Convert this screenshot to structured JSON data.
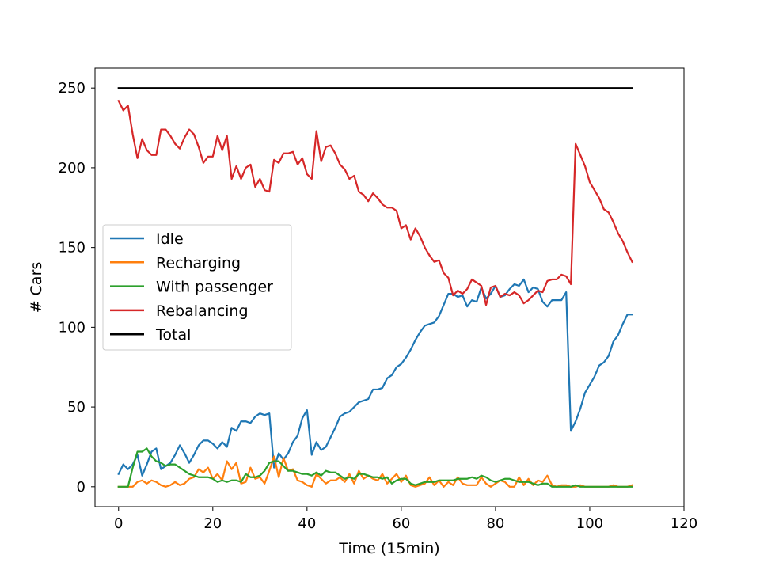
{
  "chart_data": {
    "type": "line",
    "xlabel": "Time (15min)",
    "ylabel": "# Cars",
    "xlim": [
      -5,
      120
    ],
    "ylim": [
      -12.5,
      262.5
    ],
    "xticks": [
      0,
      20,
      40,
      60,
      80,
      100,
      120
    ],
    "yticks": [
      0,
      50,
      100,
      150,
      200,
      250
    ],
    "grid": false,
    "legend_position": "center-left",
    "series": [
      {
        "name": "Idle",
        "color": "#1f77b4",
        "x": [
          0,
          1,
          2,
          3,
          4,
          5,
          6,
          7,
          8,
          9,
          10,
          11,
          12,
          13,
          14,
          15,
          16,
          17,
          18,
          19,
          20,
          21,
          22,
          23,
          24,
          25,
          26,
          27,
          28,
          29,
          30,
          31,
          32,
          33,
          34,
          35,
          36,
          37,
          38,
          39,
          40,
          41,
          42,
          43,
          44,
          45,
          46,
          47,
          48,
          49,
          50,
          51,
          52,
          53,
          54,
          55,
          56,
          57,
          58,
          59,
          60,
          61,
          62,
          63,
          64,
          65,
          66,
          67,
          68,
          69,
          70,
          71,
          72,
          73,
          74,
          75,
          76,
          77,
          78,
          79,
          80,
          81,
          82,
          83,
          84,
          85,
          86,
          87,
          88,
          89,
          90,
          91,
          92,
          93,
          94,
          95,
          96,
          97,
          98,
          99,
          100,
          101,
          102,
          103,
          104,
          105,
          106,
          107,
          108,
          109
        ],
        "y": [
          8,
          14,
          11,
          14,
          20,
          7,
          14,
          22,
          24,
          11,
          13,
          15,
          20,
          26,
          21,
          15,
          20,
          26,
          29,
          29,
          27,
          24,
          28,
          25,
          37,
          35,
          41,
          41,
          40,
          44,
          46,
          45,
          46,
          12,
          21,
          17,
          21,
          28,
          32,
          43,
          48,
          20,
          28,
          23,
          25,
          31,
          37,
          44,
          46,
          47,
          50,
          53,
          54,
          55,
          61,
          61,
          62,
          68,
          70,
          75,
          77,
          81,
          86,
          92,
          97,
          101,
          102,
          103,
          107,
          114,
          121,
          121,
          119,
          120,
          113,
          117,
          116,
          125,
          118,
          121,
          126,
          119,
          120,
          124,
          127,
          126,
          130,
          122,
          125,
          124,
          116,
          113,
          117,
          117,
          117,
          122,
          35,
          41,
          49,
          59,
          64,
          69,
          76,
          78,
          82,
          91,
          95,
          102,
          108,
          108
        ]
      },
      {
        "name": "Recharging",
        "color": "#ff7f0e",
        "x": [
          0,
          1,
          2,
          3,
          4,
          5,
          6,
          7,
          8,
          9,
          10,
          11,
          12,
          13,
          14,
          15,
          16,
          17,
          18,
          19,
          20,
          21,
          22,
          23,
          24,
          25,
          26,
          27,
          28,
          29,
          30,
          31,
          32,
          33,
          34,
          35,
          36,
          37,
          38,
          39,
          40,
          41,
          42,
          43,
          44,
          45,
          46,
          47,
          48,
          49,
          50,
          51,
          52,
          53,
          54,
          55,
          56,
          57,
          58,
          59,
          60,
          61,
          62,
          63,
          64,
          65,
          66,
          67,
          68,
          69,
          70,
          71,
          72,
          73,
          74,
          75,
          76,
          77,
          78,
          79,
          80,
          81,
          82,
          83,
          84,
          85,
          86,
          87,
          88,
          89,
          90,
          91,
          92,
          93,
          94,
          95,
          96,
          97,
          98,
          99,
          100,
          101,
          102,
          103,
          104,
          105,
          106,
          107,
          108,
          109
        ],
        "y": [
          0,
          0,
          0,
          0,
          3,
          4,
          2,
          4,
          3,
          1,
          0,
          1,
          3,
          1,
          2,
          5,
          6,
          11,
          9,
          12,
          5,
          8,
          4,
          16,
          11,
          15,
          2,
          3,
          12,
          5,
          6,
          2,
          10,
          19,
          6,
          18,
          10,
          11,
          4,
          3,
          1,
          0,
          8,
          5,
          2,
          4,
          4,
          6,
          3,
          8,
          2,
          10,
          5,
          7,
          5,
          4,
          8,
          2,
          5,
          8,
          3,
          7,
          1,
          0,
          1,
          2,
          6,
          1,
          4,
          0,
          3,
          1,
          6,
          2,
          1,
          1,
          1,
          6,
          2,
          0,
          2,
          4,
          3,
          0,
          0,
          6,
          1,
          5,
          1,
          4,
          3,
          7,
          1,
          0,
          1,
          1,
          0,
          0,
          1,
          0,
          0,
          0,
          0,
          0,
          0,
          1,
          0,
          0,
          0,
          1
        ]
      },
      {
        "name": "With passenger",
        "color": "#2ca02c",
        "x": [
          0,
          1,
          2,
          3,
          4,
          5,
          6,
          7,
          8,
          9,
          10,
          11,
          12,
          13,
          14,
          15,
          16,
          17,
          18,
          19,
          20,
          21,
          22,
          23,
          24,
          25,
          26,
          27,
          28,
          29,
          30,
          31,
          32,
          33,
          34,
          35,
          36,
          37,
          38,
          39,
          40,
          41,
          42,
          43,
          44,
          45,
          46,
          47,
          48,
          49,
          50,
          51,
          52,
          53,
          54,
          55,
          56,
          57,
          58,
          59,
          60,
          61,
          62,
          63,
          64,
          65,
          66,
          67,
          68,
          69,
          70,
          71,
          72,
          73,
          74,
          75,
          76,
          77,
          78,
          79,
          80,
          81,
          82,
          83,
          84,
          85,
          86,
          87,
          88,
          89,
          90,
          91,
          92,
          93,
          94,
          95,
          96,
          97,
          98,
          99,
          100,
          101,
          102,
          103,
          104,
          105,
          106,
          107,
          108,
          109
        ],
        "y": [
          0,
          0,
          0,
          12,
          22,
          22,
          24,
          19,
          16,
          15,
          13,
          14,
          14,
          12,
          10,
          8,
          7,
          6,
          6,
          6,
          5,
          3,
          4,
          3,
          4,
          4,
          3,
          8,
          6,
          6,
          7,
          10,
          15,
          16,
          16,
          13,
          10,
          10,
          9,
          8,
          8,
          7,
          9,
          7,
          10,
          9,
          9,
          7,
          5,
          6,
          5,
          8,
          8,
          7,
          6,
          6,
          5,
          6,
          2,
          4,
          5,
          5,
          2,
          1,
          2,
          3,
          3,
          3,
          4,
          4,
          4,
          4,
          5,
          5,
          5,
          6,
          5,
          7,
          6,
          4,
          3,
          4,
          5,
          5,
          4,
          3,
          3,
          3,
          2,
          1,
          2,
          2,
          0,
          0,
          0,
          0,
          0,
          1,
          0,
          0,
          0,
          0,
          0,
          0,
          0,
          0,
          0,
          0,
          0,
          0
        ]
      },
      {
        "name": "Rebalancing",
        "color": "#d62728",
        "x": [
          0,
          1,
          2,
          3,
          4,
          5,
          6,
          7,
          8,
          9,
          10,
          11,
          12,
          13,
          14,
          15,
          16,
          17,
          18,
          19,
          20,
          21,
          22,
          23,
          24,
          25,
          26,
          27,
          28,
          29,
          30,
          31,
          32,
          33,
          34,
          35,
          36,
          37,
          38,
          39,
          40,
          41,
          42,
          43,
          44,
          45,
          46,
          47,
          48,
          49,
          50,
          51,
          52,
          53,
          54,
          55,
          56,
          57,
          58,
          59,
          60,
          61,
          62,
          63,
          64,
          65,
          66,
          67,
          68,
          69,
          70,
          71,
          72,
          73,
          74,
          75,
          76,
          77,
          78,
          79,
          80,
          81,
          82,
          83,
          84,
          85,
          86,
          87,
          88,
          89,
          90,
          91,
          92,
          93,
          94,
          95,
          96,
          97,
          98,
          99,
          100,
          101,
          102,
          103,
          104,
          105,
          106,
          107,
          108,
          109
        ],
        "y": [
          242,
          236,
          239,
          221,
          206,
          218,
          211,
          208,
          208,
          224,
          224,
          220,
          215,
          212,
          219,
          224,
          221,
          213,
          203,
          207,
          207,
          220,
          211,
          220,
          193,
          201,
          193,
          200,
          202,
          188,
          193,
          186,
          185,
          205,
          203,
          209,
          209,
          210,
          202,
          206,
          196,
          193,
          223,
          204,
          213,
          214,
          209,
          202,
          199,
          193,
          195,
          185,
          183,
          179,
          184,
          181,
          177,
          175,
          175,
          173,
          162,
          164,
          155,
          162,
          157,
          150,
          145,
          141,
          142,
          134,
          131,
          120,
          123,
          121,
          124,
          130,
          128,
          126,
          114,
          125,
          126,
          119,
          121,
          120,
          122,
          120,
          115,
          117,
          120,
          123,
          122,
          129,
          130,
          130,
          133,
          132,
          127,
          215,
          208,
          201,
          191,
          186,
          181,
          174,
          172,
          166,
          159,
          154,
          147,
          141
        ]
      },
      {
        "name": "Total",
        "color": "#000000",
        "x": [
          0,
          109
        ],
        "y": [
          250,
          250
        ]
      }
    ]
  }
}
